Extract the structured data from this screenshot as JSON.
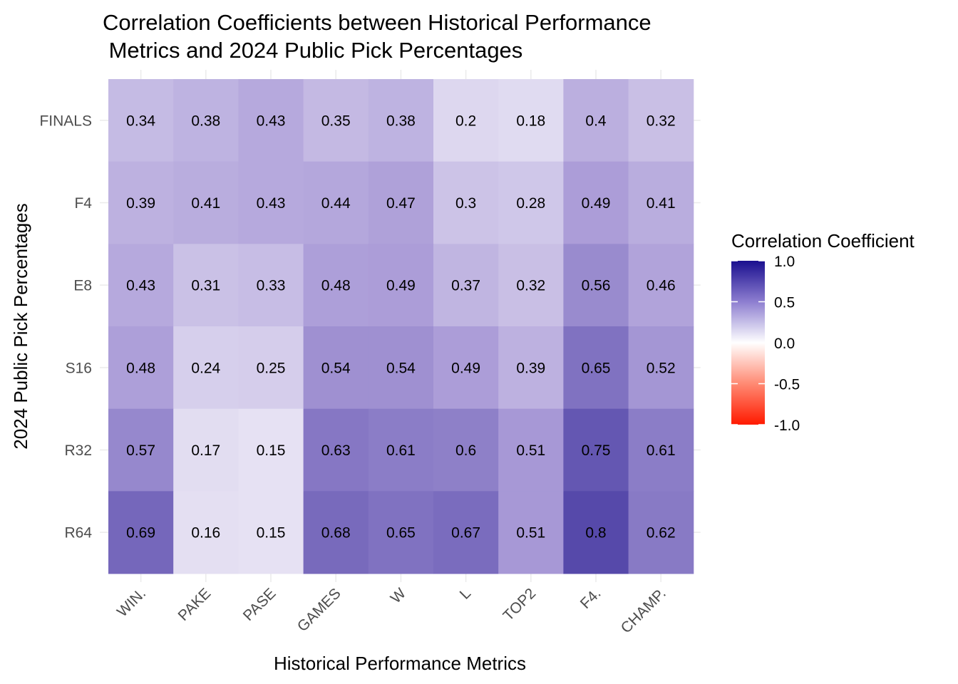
{
  "chart_data": {
    "type": "heatmap",
    "title_lines": [
      "Correlation Coefficients between Historical Performance",
      " Metrics and 2024 Public Pick Percentages"
    ],
    "xlabel": "Historical Performance Metrics",
    "ylabel": "2024 Public Pick Percentages",
    "x_categories": [
      "WIN.",
      "PAKE",
      "PASE",
      "GAMES",
      "W",
      "L",
      "TOP2",
      "F4.",
      "CHAMP."
    ],
    "y_categories_top_to_bottom": [
      "FINALS",
      "F4",
      "E8",
      "S16",
      "R32",
      "R64"
    ],
    "values": [
      [
        0.34,
        0.38,
        0.43,
        0.35,
        0.38,
        0.2,
        0.18,
        0.4,
        0.32
      ],
      [
        0.39,
        0.41,
        0.43,
        0.44,
        0.47,
        0.3,
        0.28,
        0.49,
        0.41
      ],
      [
        0.43,
        0.31,
        0.33,
        0.48,
        0.49,
        0.37,
        0.32,
        0.56,
        0.46
      ],
      [
        0.48,
        0.24,
        0.25,
        0.54,
        0.54,
        0.49,
        0.39,
        0.65,
        0.52
      ],
      [
        0.57,
        0.17,
        0.15,
        0.63,
        0.61,
        0.6,
        0.51,
        0.75,
        0.61
      ],
      [
        0.69,
        0.16,
        0.15,
        0.68,
        0.65,
        0.67,
        0.51,
        0.8,
        0.62
      ]
    ],
    "legend": {
      "title": "Correlation Coefficient",
      "ticks": [
        "1.0",
        "0.5",
        "0.0",
        "-0.5",
        "-1.0"
      ],
      "range": [
        -1,
        1
      ],
      "low_color": "#ff0000",
      "mid_color": "#ffffff",
      "high_color": "#1a0f8f",
      "placement": "right"
    },
    "grid": true
  }
}
